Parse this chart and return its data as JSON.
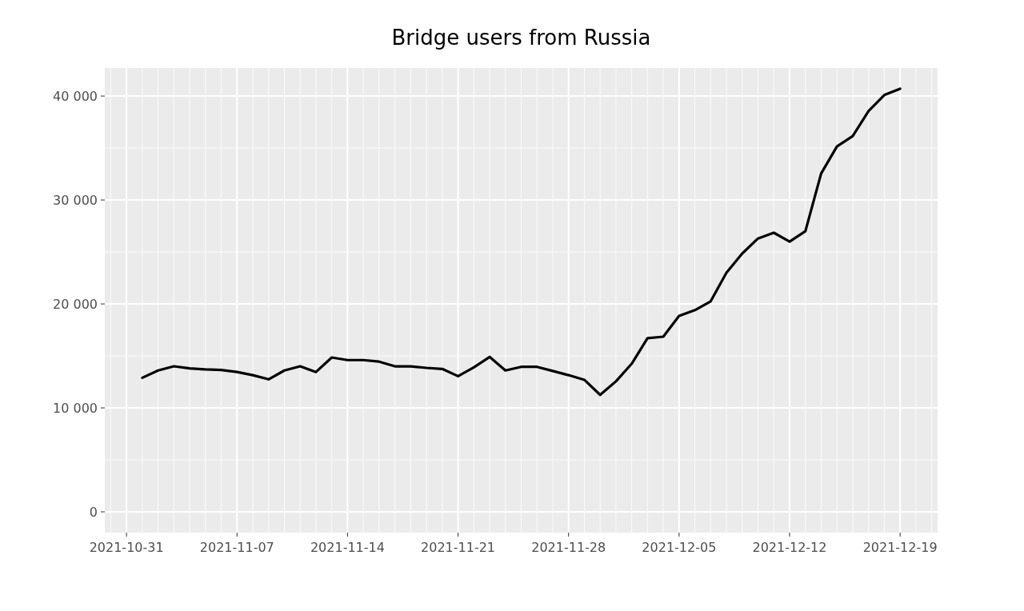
{
  "chart_data": {
    "type": "line",
    "title": "Bridge users from Russia",
    "x": [
      "2021-11-01",
      "2021-11-02",
      "2021-11-03",
      "2021-11-04",
      "2021-11-05",
      "2021-11-06",
      "2021-11-07",
      "2021-11-08",
      "2021-11-09",
      "2021-11-10",
      "2021-11-11",
      "2021-11-12",
      "2021-11-13",
      "2021-11-14",
      "2021-11-15",
      "2021-11-16",
      "2021-11-17",
      "2021-11-18",
      "2021-11-19",
      "2021-11-20",
      "2021-11-21",
      "2021-11-22",
      "2021-11-23",
      "2021-11-24",
      "2021-11-25",
      "2021-11-26",
      "2021-11-27",
      "2021-11-28",
      "2021-11-29",
      "2021-11-30",
      "2021-12-01",
      "2021-12-02",
      "2021-12-03",
      "2021-12-04",
      "2021-12-05",
      "2021-12-06",
      "2021-12-07",
      "2021-12-08",
      "2021-12-09",
      "2021-12-10",
      "2021-12-11",
      "2021-12-12",
      "2021-12-13",
      "2021-12-14",
      "2021-12-15",
      "2021-12-16",
      "2021-12-17",
      "2021-12-18",
      "2021-12-19"
    ],
    "series": [
      {
        "color": "#000000",
        "values": [
          12900,
          13600,
          14000,
          13800,
          13700,
          13650,
          13450,
          13150,
          12750,
          13600,
          14000,
          13450,
          14850,
          14600,
          14600,
          14450,
          14000,
          14000,
          13850,
          13750,
          13050,
          13900,
          14900,
          13600,
          13950,
          13950,
          13550,
          13150,
          12700,
          11250,
          12550,
          14250,
          16700,
          16850,
          18850,
          19400,
          20250,
          23000,
          24850,
          26300,
          26850,
          26000,
          27000,
          32550,
          35150,
          36150,
          38550,
          40100,
          40700
        ]
      }
    ],
    "xlim": [
      "2021-10-29T15:00",
      "2021-12-21T09:00"
    ],
    "xticks": [
      "2021-10-31",
      "2021-11-07",
      "2021-11-14",
      "2021-11-21",
      "2021-11-28",
      "2021-12-05",
      "2021-12-12",
      "2021-12-19"
    ],
    "ylim": [
      -2000,
      42700
    ],
    "yticks": [
      {
        "value": 0,
        "label": "0"
      },
      {
        "value": 10000,
        "label": "10 000"
      },
      {
        "value": 20000,
        "label": "20 000"
      },
      {
        "value": 30000,
        "label": "30 000"
      },
      {
        "value": 40000,
        "label": "40 000"
      }
    ],
    "grid": true,
    "marker": "none",
    "line_style": "solid"
  }
}
